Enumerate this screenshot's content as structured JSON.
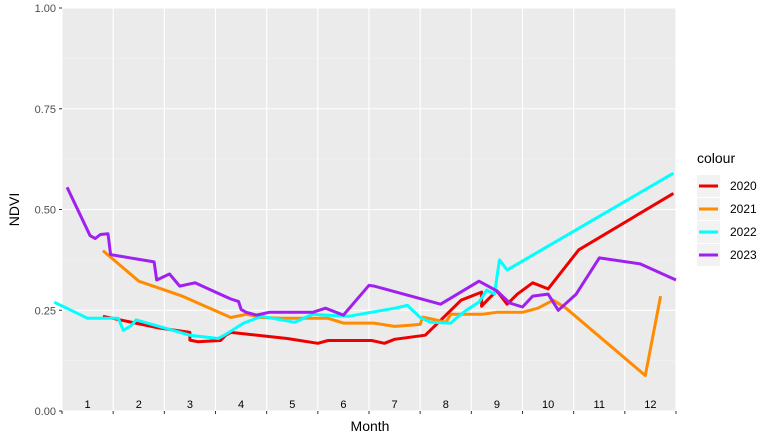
{
  "chart_data": {
    "type": "line",
    "xlabel": "Month",
    "ylabel": "NDVI",
    "xlim": [
      1,
      13
    ],
    "ylim": [
      0,
      1
    ],
    "y_ticks": [
      "0.00",
      "0.25",
      "0.50",
      "0.75",
      "1.00"
    ],
    "y_tick_values": [
      0,
      0.25,
      0.5,
      0.75,
      1
    ],
    "month_labels": [
      "1",
      "2",
      "3",
      "4",
      "5",
      "6",
      "7",
      "8",
      "9",
      "10",
      "11",
      "12"
    ],
    "grid": true,
    "background": "#ebebeb",
    "legend": {
      "title": "colour",
      "position": "right"
    },
    "series": [
      {
        "name": "2020",
        "color": "#ee0000",
        "points": [
          [
            1.8,
            0.235
          ],
          [
            2.9,
            0.206
          ],
          [
            3.5,
            0.195
          ],
          [
            3.5,
            0.176
          ],
          [
            3.65,
            0.172
          ],
          [
            4.1,
            0.175
          ],
          [
            4.2,
            0.188
          ],
          [
            4.3,
            0.195
          ],
          [
            5.4,
            0.18
          ],
          [
            6.0,
            0.168
          ],
          [
            6.2,
            0.175
          ],
          [
            6.6,
            0.175
          ],
          [
            7.05,
            0.175
          ],
          [
            7.3,
            0.168
          ],
          [
            7.5,
            0.178
          ],
          [
            8.1,
            0.188
          ],
          [
            8.4,
            0.225
          ],
          [
            8.8,
            0.275
          ],
          [
            9.2,
            0.295
          ],
          [
            9.2,
            0.26
          ],
          [
            9.35,
            0.28
          ],
          [
            9.5,
            0.298
          ],
          [
            9.7,
            0.265
          ],
          [
            9.9,
            0.29
          ],
          [
            10.2,
            0.318
          ],
          [
            10.5,
            0.303
          ],
          [
            11.1,
            0.4
          ],
          [
            12.95,
            0.54
          ]
        ]
      },
      {
        "name": "2021",
        "color": "#ff8c00",
        "points": [
          [
            1.8,
            0.398
          ],
          [
            2.5,
            0.322
          ],
          [
            3.35,
            0.285
          ],
          [
            4.3,
            0.232
          ],
          [
            4.6,
            0.24
          ],
          [
            4.9,
            0.232
          ],
          [
            5.3,
            0.23
          ],
          [
            6.2,
            0.23
          ],
          [
            6.5,
            0.218
          ],
          [
            7.1,
            0.218
          ],
          [
            7.5,
            0.21
          ],
          [
            7.8,
            0.213
          ],
          [
            8.0,
            0.215
          ],
          [
            8.05,
            0.233
          ],
          [
            8.3,
            0.226
          ],
          [
            8.5,
            0.22
          ],
          [
            8.6,
            0.24
          ],
          [
            9.2,
            0.24
          ],
          [
            9.5,
            0.245
          ],
          [
            10.0,
            0.245
          ],
          [
            10.3,
            0.255
          ],
          [
            10.6,
            0.275
          ],
          [
            10.85,
            0.255
          ],
          [
            12.4,
            0.088
          ],
          [
            12.7,
            0.285
          ]
        ]
      },
      {
        "name": "2022",
        "color": "#00ffff",
        "points": [
          [
            0.85,
            0.27
          ],
          [
            1.5,
            0.23
          ],
          [
            2.1,
            0.23
          ],
          [
            2.2,
            0.2
          ],
          [
            2.35,
            0.212
          ],
          [
            2.45,
            0.226
          ],
          [
            3.5,
            0.188
          ],
          [
            4.05,
            0.18
          ],
          [
            4.2,
            0.19
          ],
          [
            4.55,
            0.218
          ],
          [
            4.9,
            0.235
          ],
          [
            5.55,
            0.22
          ],
          [
            5.9,
            0.24
          ],
          [
            6.15,
            0.238
          ],
          [
            6.6,
            0.235
          ],
          [
            7.5,
            0.255
          ],
          [
            7.75,
            0.262
          ],
          [
            8.0,
            0.232
          ],
          [
            8.2,
            0.22
          ],
          [
            8.6,
            0.218
          ],
          [
            8.7,
            0.23
          ],
          [
            8.9,
            0.25
          ],
          [
            9.15,
            0.27
          ],
          [
            9.3,
            0.3
          ],
          [
            9.45,
            0.29
          ],
          [
            9.55,
            0.375
          ],
          [
            9.7,
            0.35
          ],
          [
            12.95,
            0.59
          ]
        ]
      },
      {
        "name": "2023",
        "color": "#a020f0",
        "points": [
          [
            1.1,
            0.555
          ],
          [
            1.55,
            0.435
          ],
          [
            1.65,
            0.428
          ],
          [
            1.75,
            0.438
          ],
          [
            1.9,
            0.44
          ],
          [
            1.95,
            0.388
          ],
          [
            2.8,
            0.37
          ],
          [
            2.85,
            0.325
          ],
          [
            3.1,
            0.34
          ],
          [
            3.3,
            0.31
          ],
          [
            3.6,
            0.318
          ],
          [
            4.0,
            0.295
          ],
          [
            4.3,
            0.278
          ],
          [
            4.45,
            0.272
          ],
          [
            4.5,
            0.252
          ],
          [
            4.6,
            0.245
          ],
          [
            4.8,
            0.238
          ],
          [
            5.05,
            0.245
          ],
          [
            5.9,
            0.245
          ],
          [
            6.15,
            0.255
          ],
          [
            6.5,
            0.238
          ],
          [
            7.0,
            0.312
          ],
          [
            7.1,
            0.31
          ],
          [
            8.4,
            0.265
          ],
          [
            9.15,
            0.322
          ],
          [
            9.5,
            0.298
          ],
          [
            9.75,
            0.268
          ],
          [
            10.0,
            0.258
          ],
          [
            10.2,
            0.285
          ],
          [
            10.5,
            0.29
          ],
          [
            10.7,
            0.25
          ],
          [
            11.05,
            0.29
          ],
          [
            11.5,
            0.38
          ],
          [
            12.3,
            0.365
          ],
          [
            13.0,
            0.325
          ]
        ]
      }
    ]
  }
}
